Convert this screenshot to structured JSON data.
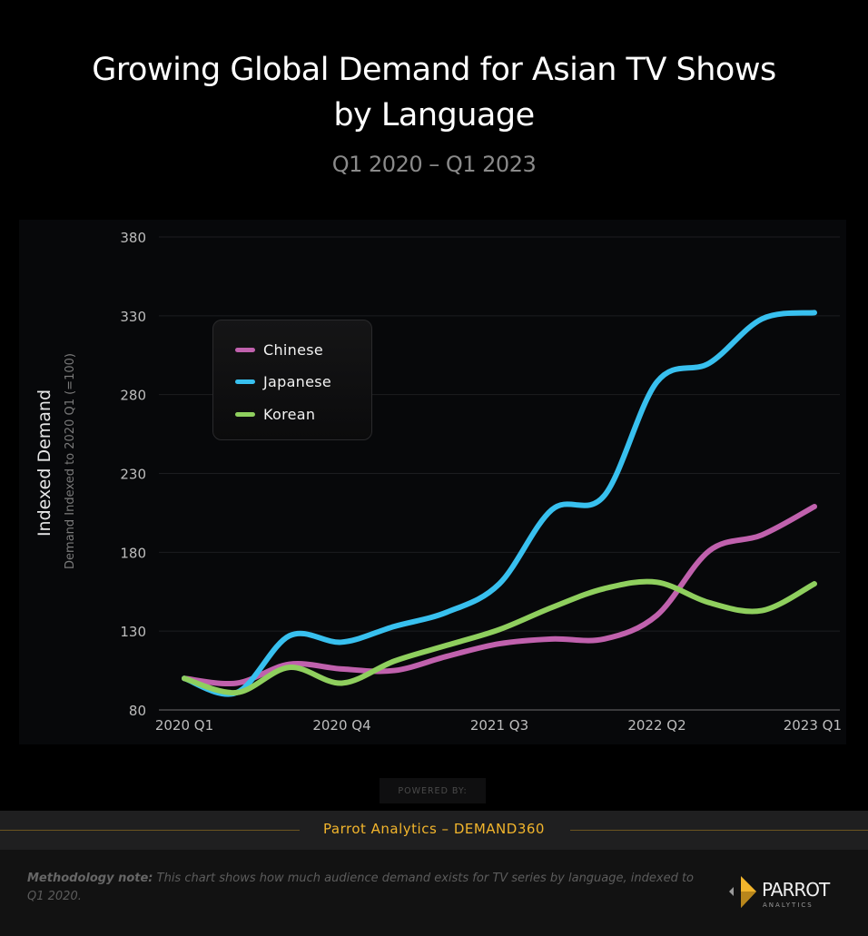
{
  "header": {
    "title_line1": "Growing Global Demand for Asian TV Shows",
    "title_line2": "by Language",
    "subtitle": "Q1 2020 – Q1 2023"
  },
  "chart_data": {
    "type": "line",
    "title": "Growing Global Demand for Asian TV Shows by Language",
    "subtitle": "Q1 2020 – Q1 2023",
    "xlabel": "",
    "ylabel": "Indexed Demand",
    "ylabel_secondary": "Demand Indexed to 2020 Q1 (=100)",
    "x": [
      "2020 Q1",
      "2020 Q2",
      "2020 Q3",
      "2020 Q4",
      "2021 Q1",
      "2021 Q2",
      "2021 Q3",
      "2021 Q4",
      "2022 Q1",
      "2022 Q2",
      "2022 Q3",
      "2022 Q4",
      "2023 Q1"
    ],
    "x_tick_labels": [
      "2020 Q1",
      "2020 Q4",
      "2021 Q3",
      "2022 Q2",
      "2023 Q1"
    ],
    "x_tick_indices": [
      0,
      3,
      6,
      9,
      12
    ],
    "ylim": [
      80,
      380
    ],
    "y_ticks": [
      80,
      130,
      180,
      230,
      280,
      330,
      380
    ],
    "grid": true,
    "legend_position": "top-left",
    "series": [
      {
        "name": "Chinese",
        "color": "#c061ad",
        "values": [
          100,
          97,
          109,
          106,
          105,
          114,
          122,
          125,
          125,
          140,
          181,
          191,
          209
        ]
      },
      {
        "name": "Japanese",
        "color": "#38c0ef",
        "values": [
          100,
          91,
          127,
          123,
          133,
          142,
          160,
          207,
          216,
          288,
          300,
          328,
          332
        ]
      },
      {
        "name": "Korean",
        "color": "#8fcf5e",
        "values": [
          100,
          91,
          107,
          97,
          111,
          121,
          131,
          145,
          157,
          161,
          148,
          143,
          160
        ]
      }
    ]
  },
  "legend": {
    "items": [
      {
        "label": "Chinese",
        "color": "#c061ad"
      },
      {
        "label": "Japanese",
        "color": "#38c0ef"
      },
      {
        "label": "Korean",
        "color": "#8fcf5e"
      }
    ]
  },
  "footer": {
    "powered_by": "POWERED BY:",
    "brand_line": "Parrot Analytics – DEMAND360",
    "method_label": "Methodology note:",
    "method_text": " This chart shows how much audience demand exists for TV series by language, indexed to Q1 2020.",
    "logo_text": "PARROT",
    "logo_sub": "ANALYTICS"
  },
  "colors": {
    "accent": "#f2b52c",
    "background": "#000000",
    "panel": "#07080a"
  }
}
